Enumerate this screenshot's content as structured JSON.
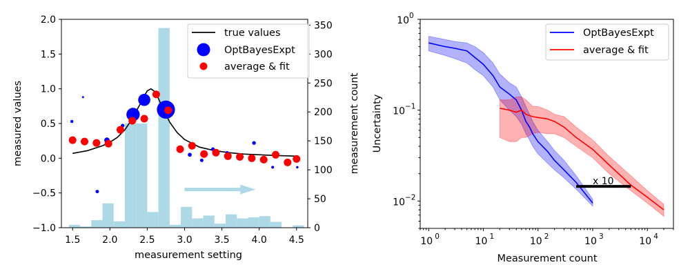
{
  "chart_data": [
    {
      "type": "scatter",
      "xlabel": "measurement setting",
      "ylabel": "measured values",
      "y2label": "measurement count",
      "xlim": [
        1.35,
        4.65
      ],
      "ylim": [
        -1.0,
        2.0
      ],
      "y2lim": [
        0,
        360
      ],
      "xticks": [
        "1.5",
        "2.0",
        "2.5",
        "3.0",
        "3.5",
        "4.0",
        "4.5"
      ],
      "yticks": [
        "−1.0",
        "−0.5",
        "0.0",
        "0.5",
        "1.0",
        "1.5",
        "2.0"
      ],
      "y2ticks": [
        "0",
        "50",
        "100",
        "150",
        "200",
        "250",
        "300",
        "350"
      ],
      "legend_position": "top-right",
      "legend": [
        "true values",
        "OptBayesExpt",
        "average & fit"
      ],
      "true_curve": {
        "name": "true values",
        "color": "#000000",
        "x": [
          1.5,
          1.7,
          1.9,
          2.0,
          2.1,
          2.2,
          2.3,
          2.4,
          2.45,
          2.5,
          2.55,
          2.6,
          2.65,
          2.7,
          2.8,
          2.9,
          3.0,
          3.2,
          3.4,
          3.6,
          3.8,
          4.0,
          4.2,
          4.5
        ],
        "y": [
          0.07,
          0.11,
          0.18,
          0.23,
          0.3,
          0.41,
          0.57,
          0.77,
          0.88,
          0.97,
          1.0,
          0.96,
          0.86,
          0.74,
          0.52,
          0.37,
          0.27,
          0.16,
          0.11,
          0.08,
          0.06,
          0.05,
          0.04,
          0.03
        ]
      },
      "optbayes_points": {
        "name": "OptBayesExpt",
        "color": "#0000ff",
        "x": [
          1.49,
          1.64,
          1.83,
          1.96,
          2.17,
          2.31,
          2.46,
          2.75,
          3.07,
          3.23,
          3.38,
          3.57,
          3.93,
          4.18,
          4.51
        ],
        "y": [
          0.53,
          0.88,
          -0.48,
          0.26,
          0.47,
          0.63,
          0.84,
          0.7,
          0.05,
          -0.03,
          0.13,
          0.08,
          0.22,
          -0.13,
          -0.13
        ],
        "counts": [
          10,
          4,
          12,
          30,
          14,
          180,
          150,
          330,
          16,
          12,
          14,
          10,
          14,
          8,
          6
        ]
      },
      "average_points": {
        "name": "average & fit",
        "color": "#ff0000",
        "x": [
          1.5,
          1.66,
          1.82,
          1.98,
          2.14,
          2.3,
          2.46,
          2.62,
          2.78,
          2.94,
          3.1,
          3.26,
          3.42,
          3.58,
          3.74,
          3.9,
          4.06,
          4.22,
          4.38,
          4.5
        ],
        "y": [
          0.26,
          0.24,
          0.22,
          0.21,
          0.41,
          0.54,
          0.57,
          0.92,
          0.69,
          0.13,
          0.18,
          0.06,
          0.08,
          0.03,
          0.02,
          0.0,
          -0.02,
          0.05,
          -0.06,
          -0.01
        ]
      },
      "histogram": {
        "name": "measurement count",
        "color": "#add8e6",
        "bin_edges": [
          1.45,
          1.6,
          1.75,
          1.9,
          2.05,
          2.2,
          2.35,
          2.5,
          2.65,
          2.8,
          2.95,
          3.1,
          3.25,
          3.4,
          3.55,
          3.7,
          3.85,
          4.0,
          4.15,
          4.3,
          4.45,
          4.6
        ],
        "counts": [
          5,
          2,
          13,
          42,
          11,
          180,
          180,
          27,
          345,
          5,
          36,
          16,
          21,
          7,
          23,
          16,
          18,
          20,
          10,
          0,
          4
        ]
      },
      "arrow": {
        "from": [
          3.0,
          -0.45
        ],
        "to": [
          3.95,
          -0.45
        ],
        "color": "#add8e6"
      }
    },
    {
      "type": "line",
      "xlabel": "Measurement count",
      "ylabel": "Uncertainty",
      "xscale": "log",
      "yscale": "log",
      "xlim": [
        0.7,
        30000
      ],
      "ylim": [
        0.005,
        1.0
      ],
      "xticks": [
        {
          "base": "10",
          "exp": "0"
        },
        {
          "base": "10",
          "exp": "1"
        },
        {
          "base": "10",
          "exp": "2"
        },
        {
          "base": "10",
          "exp": "3"
        },
        {
          "base": "10",
          "exp": "4"
        }
      ],
      "yticks": [
        {
          "base": "10",
          "exp": "−2"
        },
        {
          "base": "10",
          "exp": "−1"
        },
        {
          "base": "10",
          "exp": "0"
        }
      ],
      "legend_position": "top-right",
      "legend": [
        "OptBayesExpt",
        "average & fit"
      ],
      "series": [
        {
          "name": "OptBayesExpt",
          "color": "#0000ff",
          "x": [
            1,
            2,
            3,
            5,
            7,
            10,
            15,
            20,
            30,
            40,
            50,
            60,
            70,
            80,
            100,
            150,
            200,
            300,
            500,
            1000
          ],
          "y": [
            0.55,
            0.5,
            0.48,
            0.45,
            0.38,
            0.32,
            0.24,
            0.18,
            0.15,
            0.13,
            0.1,
            0.075,
            0.065,
            0.055,
            0.045,
            0.035,
            0.028,
            0.022,
            0.016,
            0.0095
          ],
          "band_low": [
            0.45,
            0.4,
            0.37,
            0.33,
            0.28,
            0.24,
            0.18,
            0.13,
            0.1,
            0.085,
            0.07,
            0.055,
            0.047,
            0.04,
            0.033,
            0.026,
            0.022,
            0.018,
            0.0135,
            0.0088
          ],
          "band_high": [
            0.65,
            0.6,
            0.57,
            0.55,
            0.5,
            0.43,
            0.33,
            0.25,
            0.2,
            0.18,
            0.14,
            0.11,
            0.09,
            0.075,
            0.06,
            0.045,
            0.036,
            0.028,
            0.019,
            0.0105
          ]
        },
        {
          "name": "average & fit",
          "color": "#ff0000",
          "x": [
            20,
            30,
            40,
            50,
            60,
            80,
            100,
            150,
            200,
            300,
            500,
            1000,
            2000,
            5000,
            10000,
            20000
          ],
          "y": [
            0.105,
            0.1,
            0.095,
            0.1,
            0.09,
            0.085,
            0.083,
            0.08,
            0.075,
            0.065,
            0.05,
            0.037,
            0.025,
            0.015,
            0.011,
            0.008
          ],
          "band_low": [
            0.05,
            0.045,
            0.045,
            0.05,
            0.05,
            0.055,
            0.057,
            0.055,
            0.055,
            0.05,
            0.04,
            0.03,
            0.02,
            0.013,
            0.0095,
            0.0068
          ],
          "band_high": [
            0.13,
            0.13,
            0.14,
            0.14,
            0.13,
            0.11,
            0.11,
            0.1,
            0.09,
            0.085,
            0.065,
            0.047,
            0.031,
            0.019,
            0.013,
            0.0092
          ]
        }
      ],
      "annotation": {
        "text": "x 10",
        "color": "#000000",
        "bar_from": [
          500,
          0.0145
        ],
        "bar_to": [
          5000,
          0.0145
        ]
      }
    }
  ]
}
